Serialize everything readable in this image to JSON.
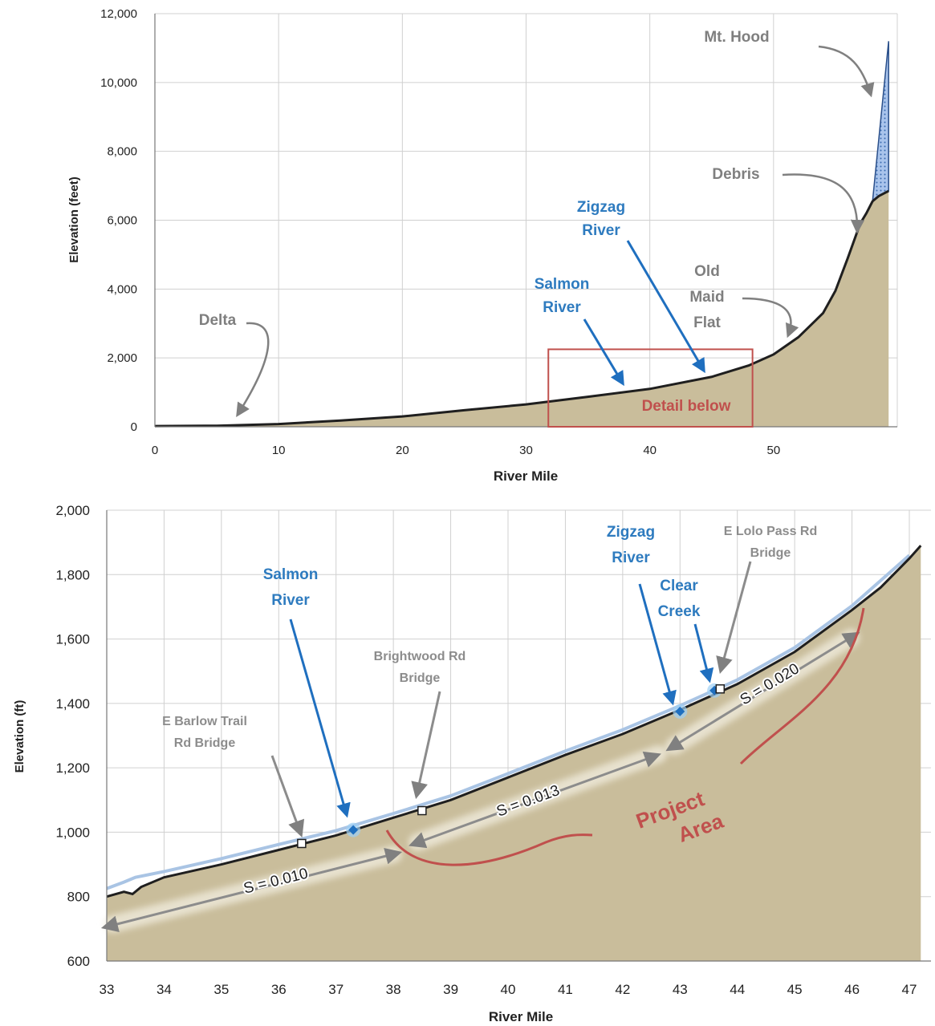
{
  "chart_data": [
    {
      "type": "area",
      "xlabel": "River Mile",
      "ylabel": "Elevation (feet)",
      "xlim": [
        0,
        60
      ],
      "ylim": [
        0,
        12000
      ],
      "x_ticks": [
        "0",
        "10",
        "20",
        "30",
        "40",
        "50"
      ],
      "y_ticks": [
        "0",
        "2,000",
        "4,000",
        "6,000",
        "8,000",
        "10,000",
        "12,000"
      ],
      "grid": true,
      "series": [
        {
          "x": [
            0,
            5,
            10,
            15,
            20,
            25,
            30,
            35,
            40,
            45,
            48,
            50,
            52,
            54,
            55,
            56,
            57,
            57.5,
            58,
            58.5,
            59.3
          ],
          "y": [
            20,
            30,
            80,
            180,
            300,
            480,
            650,
            870,
            1100,
            1450,
            1780,
            2100,
            2600,
            3300,
            3950,
            4900,
            5900,
            6200,
            6550,
            6700,
            6850
          ]
        },
        {
          "name": "Debris",
          "x": [
            58,
            59.3
          ],
          "y": [
            6550,
            11200
          ]
        }
      ],
      "annotations": [
        {
          "text": "Mt. Hood",
          "color": "#7f7f7f"
        },
        {
          "text": "Debris",
          "color": "#7f7f7f"
        },
        {
          "lines": [
            "Zigzag",
            "River"
          ],
          "color": "#2e7bbf"
        },
        {
          "lines": [
            "Salmon",
            "River"
          ],
          "color": "#2e7bbf"
        },
        {
          "lines": [
            "Old",
            "Maid",
            "Flat"
          ],
          "color": "#7f7f7f"
        },
        {
          "text": "Delta",
          "color": "#7f7f7f"
        },
        {
          "text": "Detail below",
          "color": "#c0504d",
          "box_x": [
            31.8,
            48.3
          ],
          "box_y": [
            0,
            2250
          ]
        }
      ]
    },
    {
      "type": "area",
      "xlabel": "River Mile",
      "ylabel": "Elevation (ft)",
      "xlim": [
        33,
        47.3
      ],
      "ylim": [
        600,
        2000
      ],
      "x_ticks": [
        "33",
        "34",
        "35",
        "36",
        "37",
        "38",
        "39",
        "40",
        "41",
        "42",
        "43",
        "44",
        "45",
        "46",
        "47"
      ],
      "y_ticks": [
        "600",
        "800",
        "1,000",
        "1,200",
        "1,400",
        "1,600",
        "1,800",
        "2,000"
      ],
      "grid": true,
      "series": [
        {
          "x": [
            33,
            33.3,
            33.45,
            33.6,
            34,
            35,
            36,
            37,
            38,
            39,
            40,
            41,
            42,
            43,
            44,
            45,
            46,
            46.5,
            47,
            47.2
          ],
          "y": [
            800,
            815,
            808,
            830,
            860,
            900,
            945,
            990,
            1045,
            1100,
            1170,
            1240,
            1305,
            1380,
            1460,
            1560,
            1690,
            1760,
            1850,
            1890
          ]
        },
        {
          "name": "Water surface",
          "x": [
            33,
            33.3,
            33.5,
            34,
            35,
            36,
            37,
            38,
            39,
            40,
            41,
            42,
            43,
            44,
            45,
            46,
            47
          ],
          "y": [
            825,
            845,
            860,
            878,
            918,
            962,
            1005,
            1058,
            1113,
            1182,
            1252,
            1318,
            1393,
            1473,
            1573,
            1703,
            1860
          ]
        }
      ],
      "markers": [
        {
          "label": "E Barlow Trail Rd Bridge",
          "x": 36.4,
          "y": 965,
          "kind": "bridge"
        },
        {
          "label": "Salmon River",
          "x": 37.3,
          "y": 1007,
          "kind": "confluence"
        },
        {
          "label": "Brightwood Rd Bridge",
          "x": 38.5,
          "y": 1067,
          "kind": "bridge"
        },
        {
          "label": "Zigzag River",
          "x": 43.0,
          "y": 1375,
          "kind": "confluence"
        },
        {
          "label": "Clear Creek",
          "x": 43.6,
          "y": 1440,
          "kind": "confluence"
        },
        {
          "label": "E Lolo Pass Rd Bridge",
          "x": 43.7,
          "y": 1445,
          "kind": "bridge"
        }
      ],
      "slopes": [
        "S = 0.010",
        "S = 0.013",
        "S = 0.020"
      ],
      "annotations": [
        {
          "lines": [
            "Salmon",
            "River"
          ],
          "color": "#2e7bbf"
        },
        {
          "lines": [
            "Zigzag",
            "River"
          ],
          "color": "#2e7bbf"
        },
        {
          "lines": [
            "Clear",
            "Creek"
          ],
          "color": "#2e7bbf"
        },
        {
          "lines": [
            "E Lolo Pass Rd",
            "Bridge"
          ],
          "color": "#8c8c8c"
        },
        {
          "lines": [
            "Brightwood Rd",
            "Bridge"
          ],
          "color": "#8c8c8c"
        },
        {
          "lines": [
            "E Barlow Trail",
            "Rd Bridge"
          ],
          "color": "#8c8c8c"
        },
        {
          "lines": [
            "Project",
            "Area"
          ],
          "color": "#c0504d"
        }
      ]
    }
  ],
  "colors": {
    "terrain": "#c9bd9b",
    "profile": "#1f1f1f",
    "water": "#a9c4e4",
    "debris": "#a9c4ec",
    "blue_text": "#2e7bbf",
    "gray_text": "#7f7f7f",
    "red": "#c0504d"
  }
}
